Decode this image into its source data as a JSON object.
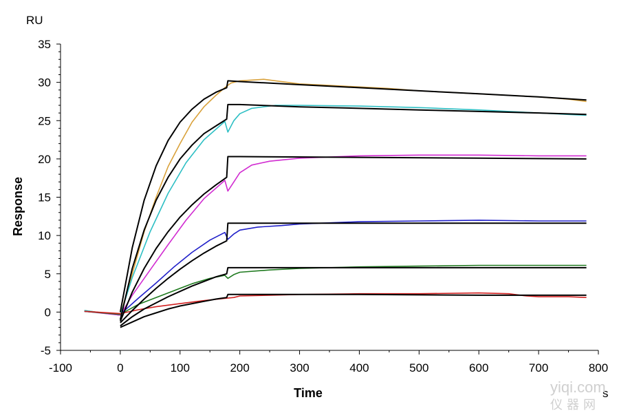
{
  "chart_data": {
    "type": "line",
    "xlabel": "Time",
    "ylabel": "Response",
    "x_unit": "s",
    "y_unit": "RU",
    "xlim": [
      -100,
      800
    ],
    "ylim": [
      -5,
      35
    ],
    "x_ticks": [
      -100,
      0,
      100,
      200,
      300,
      400,
      500,
      600,
      700,
      800
    ],
    "y_ticks": [
      -5,
      0,
      5,
      10,
      15,
      20,
      25,
      30,
      35
    ],
    "grid": false,
    "legend": "none",
    "series": [
      {
        "color": "#d9a13a",
        "points": [
          [
            -60,
            0.2
          ],
          [
            0,
            -0.4
          ],
          [
            20,
            5
          ],
          [
            40,
            10.5
          ],
          [
            60,
            15
          ],
          [
            80,
            19
          ],
          [
            100,
            22
          ],
          [
            120,
            24.8
          ],
          [
            140,
            26.8
          ],
          [
            160,
            28.3
          ],
          [
            175,
            29.3
          ],
          [
            185,
            29.9
          ],
          [
            200,
            30.2
          ],
          [
            240,
            30.4
          ],
          [
            260,
            30.2
          ],
          [
            300,
            29.8
          ],
          [
            350,
            29.6
          ],
          [
            400,
            29.4
          ],
          [
            450,
            29.2
          ],
          [
            500,
            28.9
          ],
          [
            550,
            28.7
          ],
          [
            600,
            28.5
          ],
          [
            650,
            28.3
          ],
          [
            700,
            28.1
          ],
          [
            750,
            27.8
          ],
          [
            780,
            27.5
          ]
        ]
      },
      {
        "color": "#2dbfc4",
        "points": [
          [
            -60,
            0.2
          ],
          [
            0,
            -0.4
          ],
          [
            20,
            4.5
          ],
          [
            50,
            10.5
          ],
          [
            80,
            15.5
          ],
          [
            110,
            19.5
          ],
          [
            140,
            22.5
          ],
          [
            175,
            24.9
          ],
          [
            180,
            23.5
          ],
          [
            190,
            25
          ],
          [
            200,
            25.9
          ],
          [
            220,
            26.6
          ],
          [
            260,
            27
          ],
          [
            300,
            27
          ],
          [
            400,
            26.9
          ],
          [
            500,
            26.7
          ],
          [
            600,
            26.4
          ],
          [
            650,
            26.2
          ],
          [
            700,
            26
          ],
          [
            750,
            25.8
          ],
          [
            780,
            25.7
          ]
        ]
      },
      {
        "color": "#d12bd1",
        "points": [
          [
            -60,
            0.1
          ],
          [
            0,
            -0.4
          ],
          [
            20,
            2.2
          ],
          [
            50,
            5.5
          ],
          [
            80,
            8.8
          ],
          [
            110,
            12
          ],
          [
            140,
            14.8
          ],
          [
            175,
            17.2
          ],
          [
            180,
            15.8
          ],
          [
            190,
            17
          ],
          [
            200,
            18.2
          ],
          [
            220,
            19.2
          ],
          [
            250,
            19.7
          ],
          [
            300,
            20.1
          ],
          [
            400,
            20.4
          ],
          [
            500,
            20.5
          ],
          [
            600,
            20.5
          ],
          [
            700,
            20.4
          ],
          [
            780,
            20.4
          ]
        ]
      },
      {
        "color": "#1f1fc9",
        "points": [
          [
            -60,
            0.1
          ],
          [
            0,
            -0.3
          ],
          [
            30,
            1.8
          ],
          [
            60,
            3.8
          ],
          [
            90,
            5.9
          ],
          [
            120,
            7.8
          ],
          [
            150,
            9.4
          ],
          [
            175,
            10.4
          ],
          [
            180,
            9.5
          ],
          [
            190,
            10.2
          ],
          [
            200,
            10.7
          ],
          [
            230,
            11.1
          ],
          [
            270,
            11.3
          ],
          [
            300,
            11.5
          ],
          [
            400,
            11.8
          ],
          [
            500,
            11.9
          ],
          [
            600,
            12
          ],
          [
            700,
            11.9
          ],
          [
            780,
            11.9
          ]
        ]
      },
      {
        "color": "#1f7a1f",
        "points": [
          [
            -60,
            0.1
          ],
          [
            0,
            -0.3
          ],
          [
            30,
            1
          ],
          [
            60,
            1.9
          ],
          [
            90,
            2.8
          ],
          [
            120,
            3.7
          ],
          [
            150,
            4.4
          ],
          [
            175,
            4.8
          ],
          [
            180,
            4.4
          ],
          [
            190,
            4.9
          ],
          [
            200,
            5.2
          ],
          [
            250,
            5.5
          ],
          [
            300,
            5.7
          ],
          [
            400,
            5.9
          ],
          [
            500,
            6
          ],
          [
            600,
            6.1
          ],
          [
            700,
            6.1
          ],
          [
            780,
            6.1
          ]
        ]
      },
      {
        "color": "#d11f1f",
        "points": [
          [
            -60,
            0.1
          ],
          [
            0,
            -0.2
          ],
          [
            30,
            0.3
          ],
          [
            60,
            0.7
          ],
          [
            100,
            1.1
          ],
          [
            140,
            1.5
          ],
          [
            175,
            1.8
          ],
          [
            190,
            1.9
          ],
          [
            200,
            2.1
          ],
          [
            250,
            2.2
          ],
          [
            300,
            2.3
          ],
          [
            400,
            2.4
          ],
          [
            500,
            2.4
          ],
          [
            600,
            2.5
          ],
          [
            650,
            2.4
          ],
          [
            680,
            2.1
          ],
          [
            700,
            2
          ],
          [
            750,
            2
          ],
          [
            780,
            1.9
          ]
        ]
      },
      {
        "color": "#000000",
        "points": [
          [
            0,
            0
          ],
          [
            20,
            8.4
          ],
          [
            40,
            14.6
          ],
          [
            60,
            19.1
          ],
          [
            80,
            22.4
          ],
          [
            100,
            24.8
          ],
          [
            120,
            26.5
          ],
          [
            140,
            27.8
          ],
          [
            160,
            28.7
          ],
          [
            178,
            29.3
          ],
          [
            180,
            30.2
          ],
          [
            200,
            30.1
          ],
          [
            300,
            29.7
          ],
          [
            400,
            29.3
          ],
          [
            500,
            28.9
          ],
          [
            600,
            28.5
          ],
          [
            700,
            28.1
          ],
          [
            780,
            27.7
          ]
        ]
      },
      {
        "color": "#000000",
        "points": [
          [
            0,
            -1
          ],
          [
            20,
            5.7
          ],
          [
            40,
            10.7
          ],
          [
            60,
            14.6
          ],
          [
            80,
            17.6
          ],
          [
            100,
            20
          ],
          [
            120,
            21.8
          ],
          [
            140,
            23.3
          ],
          [
            160,
            24.3
          ],
          [
            178,
            25.2
          ],
          [
            180,
            27.1
          ],
          [
            200,
            27.1
          ],
          [
            300,
            26.8
          ],
          [
            400,
            26.6
          ],
          [
            500,
            26.4
          ],
          [
            600,
            26.2
          ],
          [
            700,
            26
          ],
          [
            780,
            25.8
          ]
        ]
      },
      {
        "color": "#000000",
        "points": [
          [
            0,
            -1.2
          ],
          [
            20,
            2.6
          ],
          [
            40,
            5.7
          ],
          [
            60,
            8.3
          ],
          [
            80,
            10.5
          ],
          [
            100,
            12.4
          ],
          [
            120,
            14
          ],
          [
            140,
            15.4
          ],
          [
            160,
            16.6
          ],
          [
            178,
            17.6
          ],
          [
            180,
            20.3
          ],
          [
            200,
            20.3
          ],
          [
            400,
            20.2
          ],
          [
            600,
            20.1
          ],
          [
            780,
            20
          ]
        ]
      },
      {
        "color": "#000000",
        "points": [
          [
            0,
            -1.4
          ],
          [
            20,
            0.2
          ],
          [
            40,
            1.7
          ],
          [
            60,
            3.1
          ],
          [
            80,
            4.4
          ],
          [
            100,
            5.6
          ],
          [
            120,
            6.7
          ],
          [
            140,
            7.7
          ],
          [
            160,
            8.6
          ],
          [
            178,
            9.3
          ],
          [
            180,
            11.6
          ],
          [
            200,
            11.6
          ],
          [
            400,
            11.6
          ],
          [
            600,
            11.6
          ],
          [
            780,
            11.6
          ]
        ]
      },
      {
        "color": "#000000",
        "points": [
          [
            0,
            -1.8
          ],
          [
            20,
            -0.6
          ],
          [
            40,
            0.4
          ],
          [
            60,
            1.2
          ],
          [
            80,
            2
          ],
          [
            100,
            2.7
          ],
          [
            120,
            3.4
          ],
          [
            140,
            4
          ],
          [
            160,
            4.6
          ],
          [
            178,
            5
          ],
          [
            180,
            5.8
          ],
          [
            200,
            5.8
          ],
          [
            400,
            5.8
          ],
          [
            600,
            5.8
          ],
          [
            780,
            5.8
          ]
        ]
      },
      {
        "color": "#000000",
        "points": [
          [
            0,
            -2
          ],
          [
            20,
            -1.3
          ],
          [
            40,
            -0.6
          ],
          [
            60,
            -0.1
          ],
          [
            80,
            0.4
          ],
          [
            100,
            0.8
          ],
          [
            120,
            1.1
          ],
          [
            140,
            1.4
          ],
          [
            160,
            1.7
          ],
          [
            178,
            1.9
          ],
          [
            180,
            2.3
          ],
          [
            200,
            2.3
          ],
          [
            400,
            2.3
          ],
          [
            600,
            2.2
          ],
          [
            780,
            2.2
          ]
        ]
      }
    ]
  },
  "watermark": {
    "line1": "yiqi.com",
    "line2": "仪器网"
  }
}
